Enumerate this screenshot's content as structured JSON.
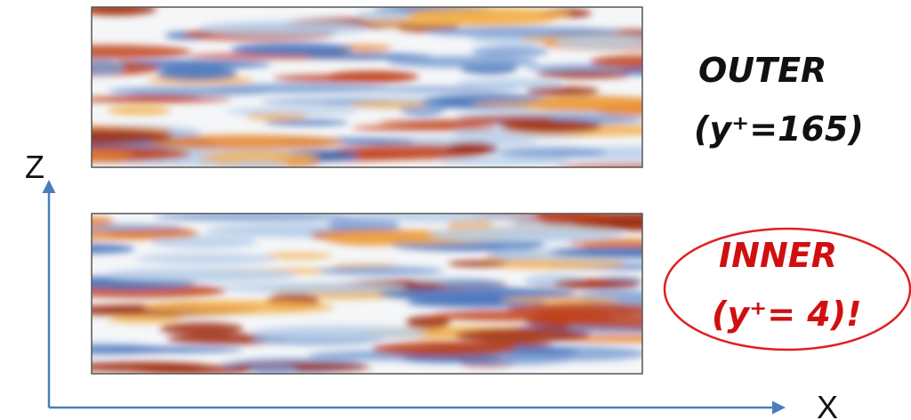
{
  "axes": {
    "z_label": "Z",
    "x_label": "X"
  },
  "panels": [
    {
      "name": "OUTER",
      "location": "(y⁺=165)"
    },
    {
      "name": "INNER",
      "location": "(y⁺= 4)!"
    }
  ]
}
